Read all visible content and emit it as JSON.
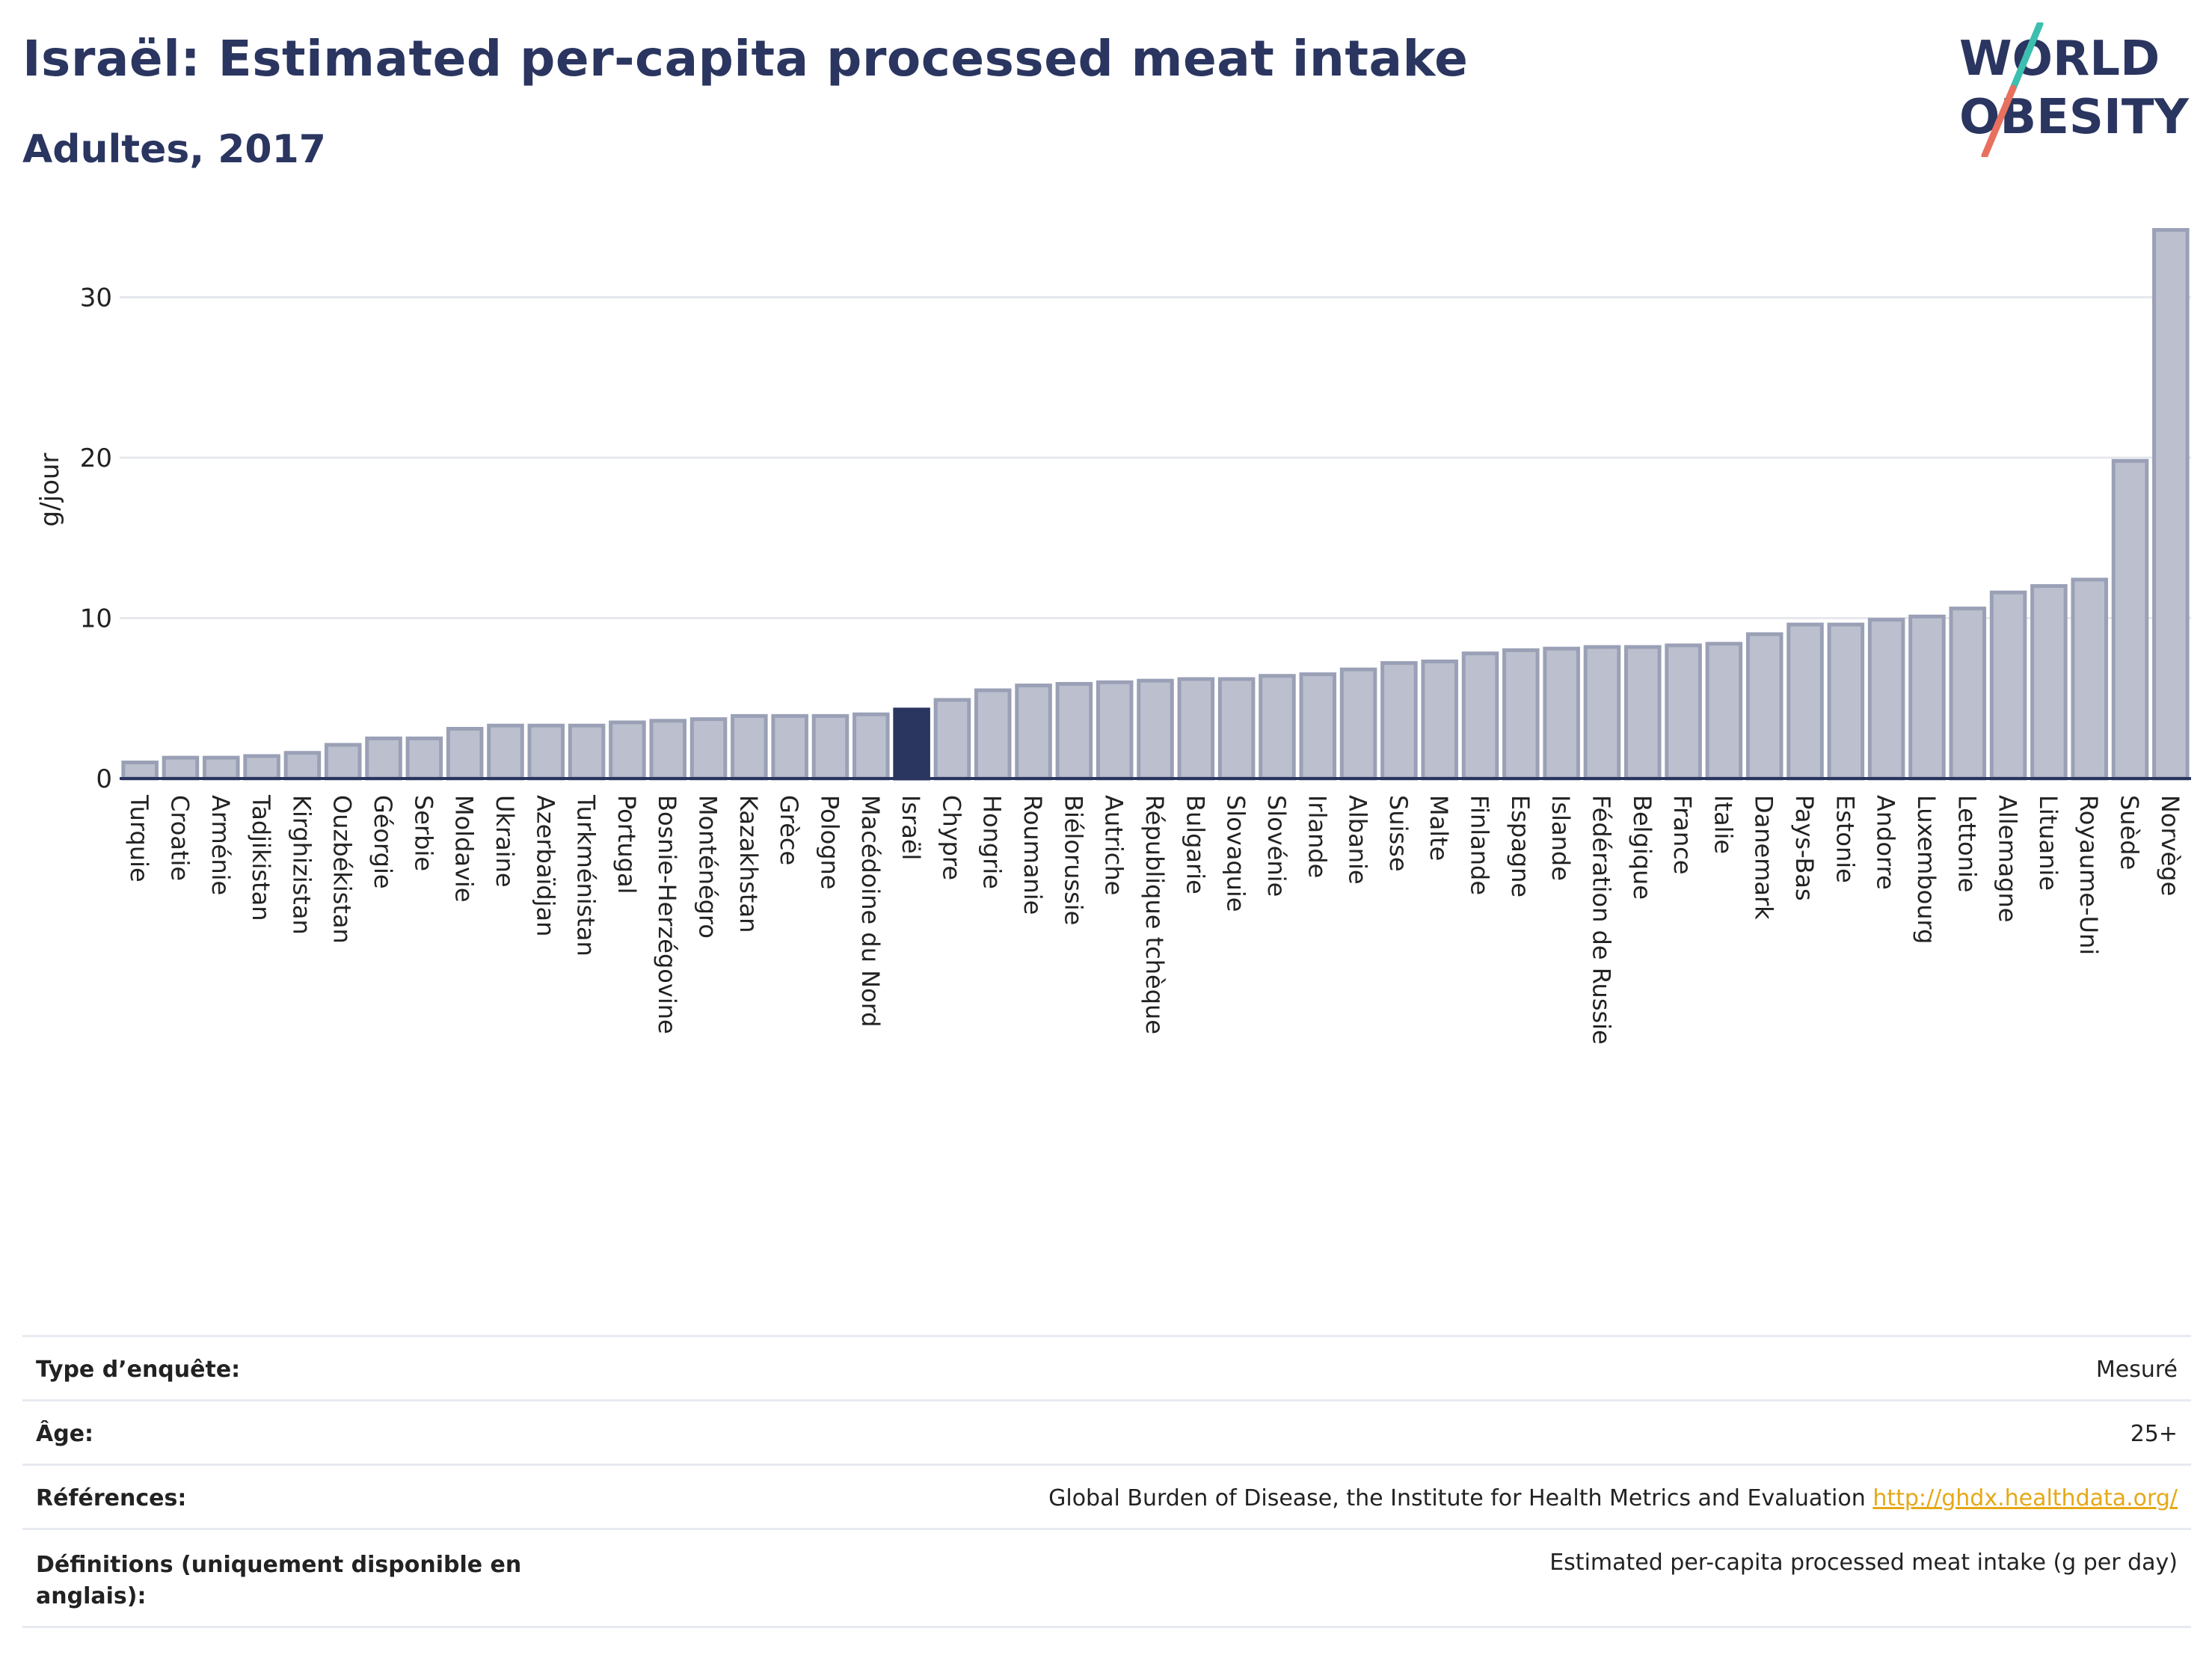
{
  "header": {
    "title": "Israël: Estimated per-capita processed meat intake",
    "subtitle": "Adultes, 2017"
  },
  "logo": {
    "line1": "WORLD",
    "line2": "OBESITY"
  },
  "colors": {
    "bar": "#bcc0ce",
    "bar_stroke": "#9aa0b6",
    "highlight": "#2a3560",
    "title": "#2a3560",
    "link": "#e6a817"
  },
  "chart_data": {
    "type": "bar",
    "ylabel": "g/jour",
    "ylim": [
      0,
      34.5
    ],
    "yticks": [
      0,
      10,
      20,
      30
    ],
    "grid": true,
    "highlight": "Israël",
    "categories": [
      "Turquie",
      "Croatie",
      "Arménie",
      "Tadjikistan",
      "Kirghizistan",
      "Ouzbékistan",
      "Géorgie",
      "Serbie",
      "Moldavie",
      "Ukraine",
      "Azerbaïdjan",
      "Turkménistan",
      "Portugal",
      "Bosnie-Herzégovine",
      "Monténégro",
      "Kazakhstan",
      "Grèce",
      "Pologne",
      "Macédoine du Nord",
      "Israël",
      "Chypre",
      "Hongrie",
      "Roumanie",
      "Biélorussie",
      "Autriche",
      "République tchèque",
      "Bulgarie",
      "Slovaquie",
      "Slovénie",
      "Irlande",
      "Albanie",
      "Suisse",
      "Malte",
      "Finlande",
      "Espagne",
      "Islande",
      "Fédération de Russie",
      "Belgique",
      "France",
      "Italie",
      "Danemark",
      "Pays-Bas",
      "Estonie",
      "Andorre",
      "Luxembourg",
      "Lettonie",
      "Allemagne",
      "Lituanie",
      "Royaume-Uni",
      "Suède",
      "Norvège"
    ],
    "values": [
      1.0,
      1.3,
      1.3,
      1.4,
      1.6,
      2.1,
      2.5,
      2.5,
      3.1,
      3.3,
      3.3,
      3.3,
      3.5,
      3.6,
      3.7,
      3.9,
      3.9,
      3.9,
      4.0,
      4.3,
      4.9,
      5.5,
      5.8,
      5.9,
      6.0,
      6.1,
      6.2,
      6.2,
      6.4,
      6.5,
      6.8,
      7.2,
      7.3,
      7.8,
      8.0,
      8.1,
      8.2,
      8.2,
      8.3,
      8.4,
      9.0,
      9.6,
      9.6,
      9.9,
      10.1,
      10.6,
      11.6,
      12.0,
      12.4,
      19.8,
      34.2
    ]
  },
  "info": {
    "rows": [
      {
        "label": "Type d’enquête:",
        "value": "Mesuré"
      },
      {
        "label": "Âge:",
        "value": "25+"
      },
      {
        "label": "Références:",
        "value": "Global Burden of Disease, the Institute for Health Metrics and Evaluation",
        "link": "http://ghdx.healthdata.org/"
      },
      {
        "label": "Définitions (uniquement disponible en anglais):",
        "value": "Estimated per-capita processed meat intake (g per day)"
      }
    ]
  }
}
